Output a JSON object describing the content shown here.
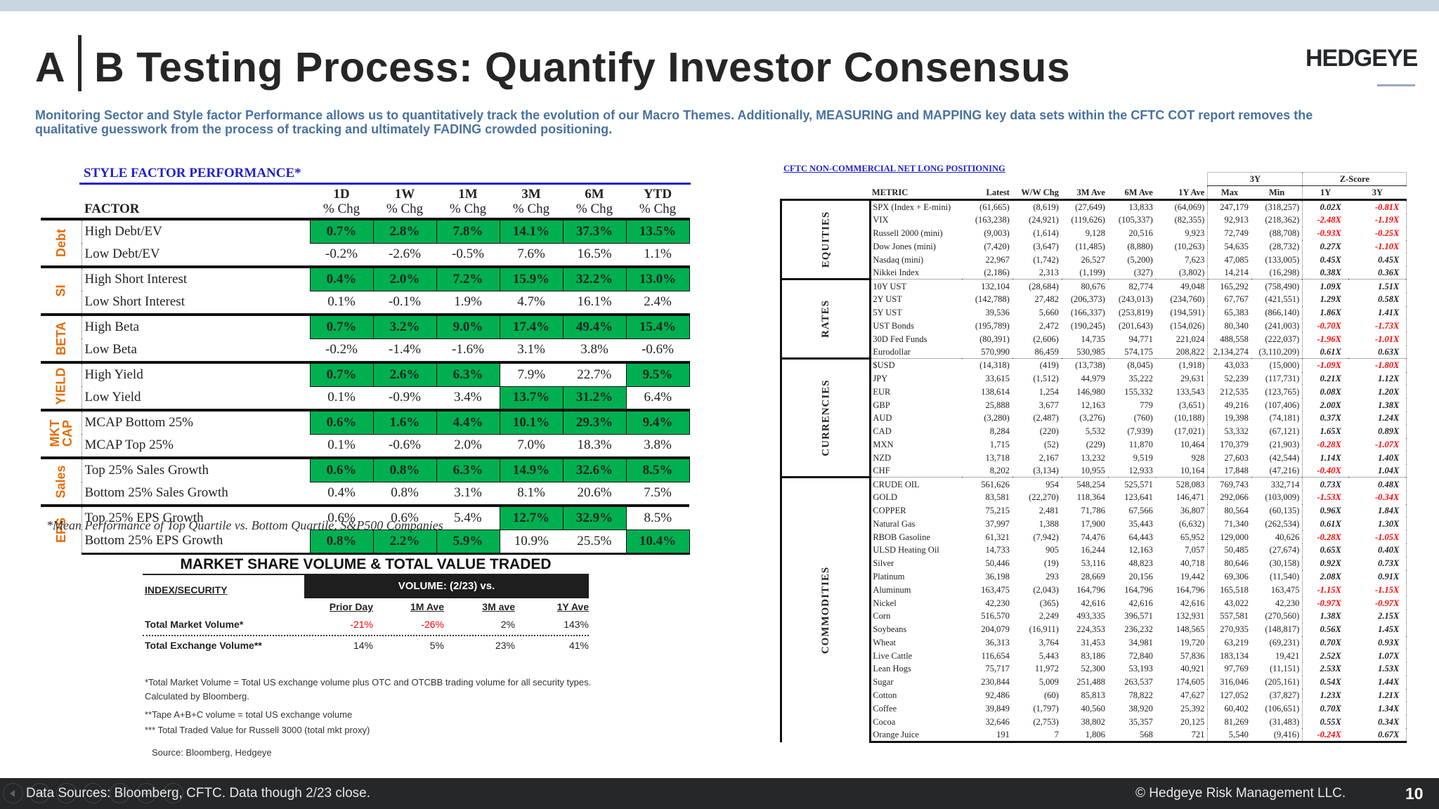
{
  "header": {
    "title_a": "A",
    "title_rest": "B Testing Process: Quantify Investor Consensus",
    "logo": "HEDGEYE",
    "subtitle": "Monitoring Sector and Style factor Performance allows us to quantitatively track the evolution of our Macro Themes. Additionally, MEASURING and MAPPING key data sets within the CFTC COT report removes the qualitative guesswork from the process of tracking and ultimately FADING crowded positioning."
  },
  "colors": {
    "accent_blue": "#4a72a0",
    "highlight_green": "#00b050",
    "group_orange": "#e46c0a",
    "negative_red": "#ff0000"
  },
  "style_factor": {
    "title": "STYLE FACTOR PERFORMANCE*",
    "factor_header": "FACTOR",
    "columns": [
      {
        "period": "1D",
        "unit": "% Chg"
      },
      {
        "period": "1W",
        "unit": "% Chg"
      },
      {
        "period": "1M",
        "unit": "% Chg"
      },
      {
        "period": "3M",
        "unit": "% Chg"
      },
      {
        "period": "6M",
        "unit": "% Chg"
      },
      {
        "period": "YTD",
        "unit": "% Chg"
      }
    ],
    "groups": [
      {
        "label": "Debt",
        "rows": [
          {
            "factor": "High Debt/EV",
            "values": [
              "0.7%",
              "2.8%",
              "7.8%",
              "14.1%",
              "37.3%",
              "13.5%"
            ],
            "highlight": [
              1,
              1,
              1,
              1,
              1,
              1
            ]
          },
          {
            "factor": "Low Debt/EV",
            "values": [
              "-0.2%",
              "-2.6%",
              "-0.5%",
              "7.6%",
              "16.5%",
              "1.1%"
            ],
            "highlight": [
              0,
              0,
              0,
              0,
              0,
              0
            ]
          }
        ]
      },
      {
        "label": "SI",
        "rows": [
          {
            "factor": "High Short Interest",
            "values": [
              "0.4%",
              "2.0%",
              "7.2%",
              "15.9%",
              "32.2%",
              "13.0%"
            ],
            "highlight": [
              1,
              1,
              1,
              1,
              1,
              1
            ]
          },
          {
            "factor": "Low Short Interest",
            "values": [
              "0.1%",
              "-0.1%",
              "1.9%",
              "4.7%",
              "16.1%",
              "2.4%"
            ],
            "highlight": [
              0,
              0,
              0,
              0,
              0,
              0
            ]
          }
        ]
      },
      {
        "label": "BETA",
        "rows": [
          {
            "factor": "High Beta",
            "values": [
              "0.7%",
              "3.2%",
              "9.0%",
              "17.4%",
              "49.4%",
              "15.4%"
            ],
            "highlight": [
              1,
              1,
              1,
              1,
              1,
              1
            ]
          },
          {
            "factor": "Low Beta",
            "values": [
              "-0.2%",
              "-1.4%",
              "-1.6%",
              "3.1%",
              "3.8%",
              "-0.6%"
            ],
            "highlight": [
              0,
              0,
              0,
              0,
              0,
              0
            ]
          }
        ]
      },
      {
        "label": "YIELD",
        "rows": [
          {
            "factor": "High Yield",
            "values": [
              "0.7%",
              "2.6%",
              "6.3%",
              "7.9%",
              "22.7%",
              "9.5%"
            ],
            "highlight": [
              1,
              1,
              1,
              0,
              0,
              1
            ]
          },
          {
            "factor": "Low Yield",
            "values": [
              "0.1%",
              "-0.9%",
              "3.4%",
              "13.7%",
              "31.2%",
              "6.4%"
            ],
            "highlight": [
              0,
              0,
              0,
              1,
              1,
              0
            ]
          }
        ]
      },
      {
        "label": "MKT CAP",
        "rows": [
          {
            "factor": "MCAP Bottom 25%",
            "values": [
              "0.6%",
              "1.6%",
              "4.4%",
              "10.1%",
              "29.3%",
              "9.4%"
            ],
            "highlight": [
              1,
              1,
              1,
              1,
              1,
              1
            ]
          },
          {
            "factor": "MCAP Top 25%",
            "values": [
              "0.1%",
              "-0.6%",
              "2.0%",
              "7.0%",
              "18.3%",
              "3.8%"
            ],
            "highlight": [
              0,
              0,
              0,
              0,
              0,
              0
            ]
          }
        ]
      },
      {
        "label": "Sales",
        "rows": [
          {
            "factor": "Top 25% Sales Growth",
            "values": [
              "0.6%",
              "0.8%",
              "6.3%",
              "14.9%",
              "32.6%",
              "8.5%"
            ],
            "highlight": [
              1,
              1,
              1,
              1,
              1,
              1
            ]
          },
          {
            "factor": "Bottom 25% Sales Growth",
            "values": [
              "0.4%",
              "0.8%",
              "3.1%",
              "8.1%",
              "20.6%",
              "7.5%"
            ],
            "highlight": [
              0,
              0,
              0,
              0,
              0,
              0
            ]
          }
        ]
      },
      {
        "label": "EPS",
        "rows": [
          {
            "factor": "Top 25% EPS Growth",
            "values": [
              "0.6%",
              "0.6%",
              "5.4%",
              "12.7%",
              "32.9%",
              "8.5%"
            ],
            "highlight": [
              0,
              0,
              0,
              1,
              1,
              0
            ]
          },
          {
            "factor": "Bottom 25% EPS Growth",
            "values": [
              "0.8%",
              "2.2%",
              "5.9%",
              "10.9%",
              "25.5%",
              "10.4%"
            ],
            "highlight": [
              1,
              1,
              1,
              0,
              0,
              1
            ]
          }
        ]
      }
    ],
    "note": "*Mean Performance of Top Quartile vs. Bottom Quartile, S&P500 Companies"
  },
  "market_share": {
    "title": "MARKET SHARE VOLUME & TOTAL VALUE TRADED",
    "index_header": "INDEX/SECURITY",
    "volume_header": "VOLUME:  (2/23) vs.",
    "columns": [
      "Prior Day",
      "1M Ave",
      "3M ave",
      "1Y Ave"
    ],
    "rows": [
      {
        "label": "Total Market Volume*",
        "values": [
          "-21%",
          "-26%",
          "2%",
          "143%"
        ]
      },
      {
        "label": "Total Exchange Volume**",
        "values": [
          "14%",
          "5%",
          "23%",
          "41%"
        ]
      }
    ],
    "notes": [
      "*Total Market Volume = Total US exchange volume plus OTC and OTCBB trading volume for all security types. Calculated by Bloomberg.",
      "**Tape A+B+C volume = total US exchange volume",
      "*** Total Traded Value for Russell 3000 (total mkt proxy)"
    ],
    "source": "Source: Bloomberg, Hedgeye"
  },
  "cftc": {
    "title": "CFTC NON-COMMERCIAL NET LONG POSITIONING",
    "group_headers": {
      "range": "3Y",
      "zscore": "Z-Score"
    },
    "columns": [
      "METRIC",
      "Latest",
      "W/W Chg",
      "3M Ave",
      "6M Ave",
      "1Y Ave",
      "Max",
      "Min",
      "1Y",
      "3Y"
    ],
    "sections": [
      {
        "label": "EQUITIES",
        "rows": [
          [
            "SPX (Index + E-mini)",
            "(61,665)",
            "(8,619)",
            "(27,649)",
            "13,833",
            "(64,069)",
            "247,179",
            "(318,257)",
            "0.02X",
            "-0.81X"
          ],
          [
            "VIX",
            "(163,238)",
            "(24,921)",
            "(119,626)",
            "(105,337)",
            "(82,355)",
            "92,913",
            "(218,362)",
            "-2.48X",
            "-1.19X"
          ],
          [
            "Russell 2000 (mini)",
            "(9,003)",
            "(1,614)",
            "9,128",
            "20,516",
            "9,923",
            "72,749",
            "(88,708)",
            "-0.93X",
            "-0.25X"
          ],
          [
            "Dow Jones (mini)",
            "(7,420)",
            "(3,647)",
            "(11,485)",
            "(8,880)",
            "(10,263)",
            "54,635",
            "(28,732)",
            "0.27X",
            "-1.10X"
          ],
          [
            "Nasdaq (mini)",
            "22,967",
            "(1,742)",
            "26,527",
            "(5,200)",
            "7,623",
            "47,085",
            "(133,005)",
            "0.45X",
            "0.45X"
          ],
          [
            "Nikkei Index",
            "(2,186)",
            "2,313",
            "(1,199)",
            "(327)",
            "(3,802)",
            "14,214",
            "(16,298)",
            "0.38X",
            "0.36X"
          ]
        ]
      },
      {
        "label": "RATES",
        "rows": [
          [
            "10Y UST",
            "132,104",
            "(28,684)",
            "80,676",
            "82,774",
            "49,048",
            "165,292",
            "(758,490)",
            "1.09X",
            "1.51X"
          ],
          [
            "2Y UST",
            "(142,788)",
            "27,482",
            "(206,373)",
            "(243,013)",
            "(234,760)",
            "67,767",
            "(421,551)",
            "1.29X",
            "0.58X"
          ],
          [
            "5Y UST",
            "39,536",
            "5,660",
            "(166,337)",
            "(253,819)",
            "(194,591)",
            "65,383",
            "(866,140)",
            "1.86X",
            "1.41X"
          ],
          [
            "UST Bonds",
            "(195,789)",
            "2,472",
            "(190,245)",
            "(201,643)",
            "(154,026)",
            "80,340",
            "(241,003)",
            "-0.70X",
            "-1.73X"
          ],
          [
            "30D Fed Funds",
            "(80,391)",
            "(2,606)",
            "14,735",
            "94,771",
            "221,024",
            "488,558",
            "(222,037)",
            "-1.96X",
            "-1.01X"
          ],
          [
            "Eurodollar",
            "570,990",
            "86,459",
            "530,985",
            "574,175",
            "208,822",
            "2,134,274",
            "(3,110,209)",
            "0.61X",
            "0.63X"
          ]
        ]
      },
      {
        "label": "CURRENCIES",
        "rows": [
          [
            "$USD",
            "(14,318)",
            "(419)",
            "(13,738)",
            "(8,045)",
            "(1,918)",
            "43,033",
            "(15,000)",
            "-1.09X",
            "-1.80X"
          ],
          [
            "JPY",
            "33,615",
            "(1,512)",
            "44,979",
            "35,222",
            "29,631",
            "52,239",
            "(117,731)",
            "0.21X",
            "1.12X"
          ],
          [
            "EUR",
            "138,614",
            "1,254",
            "146,980",
            "155,332",
            "133,543",
            "212,535",
            "(123,765)",
            "0.08X",
            "1.20X"
          ],
          [
            "GBP",
            "25,888",
            "3,677",
            "12,163",
            "779",
            "(3,651)",
            "49,216",
            "(107,406)",
            "2.00X",
            "1.38X"
          ],
          [
            "AUD",
            "(3,280)",
            "(2,487)",
            "(3,276)",
            "(760)",
            "(10,188)",
            "19,398",
            "(74,181)",
            "0.37X",
            "1.24X"
          ],
          [
            "CAD",
            "8,284",
            "(220)",
            "5,532",
            "(7,939)",
            "(17,021)",
            "53,332",
            "(67,121)",
            "1.65X",
            "0.89X"
          ],
          [
            "MXN",
            "1,715",
            "(52)",
            "(229)",
            "11,870",
            "10,464",
            "170,379",
            "(21,903)",
            "-0.28X",
            "-1.07X"
          ],
          [
            "NZD",
            "13,718",
            "2,167",
            "13,232",
            "9,519",
            "928",
            "27,603",
            "(42,544)",
            "1.14X",
            "1.40X"
          ],
          [
            "CHF",
            "8,202",
            "(3,134)",
            "10,955",
            "12,933",
            "10,164",
            "17,848",
            "(47,216)",
            "-0.40X",
            "1.04X"
          ]
        ]
      },
      {
        "label": "COMMODITIES",
        "rows": [
          [
            "CRUDE OIL",
            "561,626",
            "954",
            "548,254",
            "525,571",
            "528,083",
            "769,743",
            "332,714",
            "0.73X",
            "0.48X"
          ],
          [
            "GOLD",
            "83,581",
            "(22,270)",
            "118,364",
            "123,641",
            "146,471",
            "292,066",
            "(103,009)",
            "-1.53X",
            "-0.34X"
          ],
          [
            "COPPER",
            "75,215",
            "2,481",
            "71,786",
            "67,566",
            "36,807",
            "80,564",
            "(60,135)",
            "0.96X",
            "1.84X"
          ],
          [
            "Natural Gas",
            "37,997",
            "1,388",
            "17,900",
            "35,443",
            "(6,632)",
            "71,340",
            "(262,534)",
            "0.61X",
            "1.30X"
          ],
          [
            "RBOB Gasoline",
            "61,321",
            "(7,942)",
            "74,476",
            "64,443",
            "65,952",
            "129,000",
            "40,626",
            "-0.28X",
            "-1.05X"
          ],
          [
            "ULSD Heating Oil",
            "14,733",
            "905",
            "16,244",
            "12,163",
            "7,057",
            "50,485",
            "(27,674)",
            "0.65X",
            "0.40X"
          ],
          [
            "Silver",
            "50,446",
            "(19)",
            "53,116",
            "48,823",
            "40,718",
            "80,646",
            "(30,158)",
            "0.92X",
            "0.73X"
          ],
          [
            "Platinum",
            "36,198",
            "293",
            "28,669",
            "20,156",
            "19,442",
            "69,306",
            "(11,540)",
            "2.08X",
            "0.91X"
          ],
          [
            "Aluminum",
            "163,475",
            "(2,043)",
            "164,796",
            "164,796",
            "164,796",
            "165,518",
            "163,475",
            "-1.15X",
            "-1.15X"
          ],
          [
            "Nickel",
            "42,230",
            "(365)",
            "42,616",
            "42,616",
            "42,616",
            "43,022",
            "42,230",
            "-0.97X",
            "-0.97X"
          ],
          [
            "Corn",
            "516,570",
            "2,249",
            "493,335",
            "396,571",
            "132,931",
            "557,581",
            "(270,560)",
            "1.38X",
            "2.15X"
          ],
          [
            "Soybeans",
            "204,079",
            "(16,911)",
            "224,353",
            "236,232",
            "148,565",
            "270,935",
            "(148,817)",
            "0.56X",
            "1.45X"
          ],
          [
            "Wheat",
            "36,313",
            "3,764",
            "31,453",
            "34,981",
            "19,720",
            "63,219",
            "(69,231)",
            "0.70X",
            "0.93X"
          ],
          [
            "Live Cattle",
            "116,654",
            "5,443",
            "83,186",
            "72,840",
            "57,836",
            "183,134",
            "19,421",
            "2.52X",
            "1.07X"
          ],
          [
            "Lean Hogs",
            "75,717",
            "11,972",
            "52,300",
            "53,193",
            "40,921",
            "97,769",
            "(11,151)",
            "2.53X",
            "1.53X"
          ],
          [
            "Sugar",
            "230,844",
            "5,009",
            "251,488",
            "263,537",
            "174,605",
            "316,046",
            "(205,161)",
            "0.54X",
            "1.44X"
          ],
          [
            "Cotton",
            "92,486",
            "(60)",
            "85,813",
            "78,822",
            "47,627",
            "127,052",
            "(37,827)",
            "1.23X",
            "1.21X"
          ],
          [
            "Coffee",
            "39,849",
            "(1,797)",
            "40,560",
            "38,920",
            "25,392",
            "60,402",
            "(106,651)",
            "0.70X",
            "1.34X"
          ],
          [
            "Cocoa",
            "32,646",
            "(2,753)",
            "38,802",
            "35,357",
            "20,125",
            "81,269",
            "(31,483)",
            "0.55X",
            "0.34X"
          ],
          [
            "Orange Juice",
            "191",
            "7",
            "1,806",
            "568",
            "721",
            "5,540",
            "(9,416)",
            "-0.24X",
            "0.67X"
          ]
        ]
      }
    ]
  },
  "footer": {
    "sources": "Data Sources: Bloomberg, CFTC. Data though 2/23 close.",
    "copyright": "© Hedgeye Risk Management LLC.",
    "page": "10",
    "controls": [
      "previous-icon",
      "pen-icon",
      "pointer-icon",
      "slides-icon",
      "zoom-icon",
      "subtitles-icon",
      "more-icon"
    ]
  }
}
